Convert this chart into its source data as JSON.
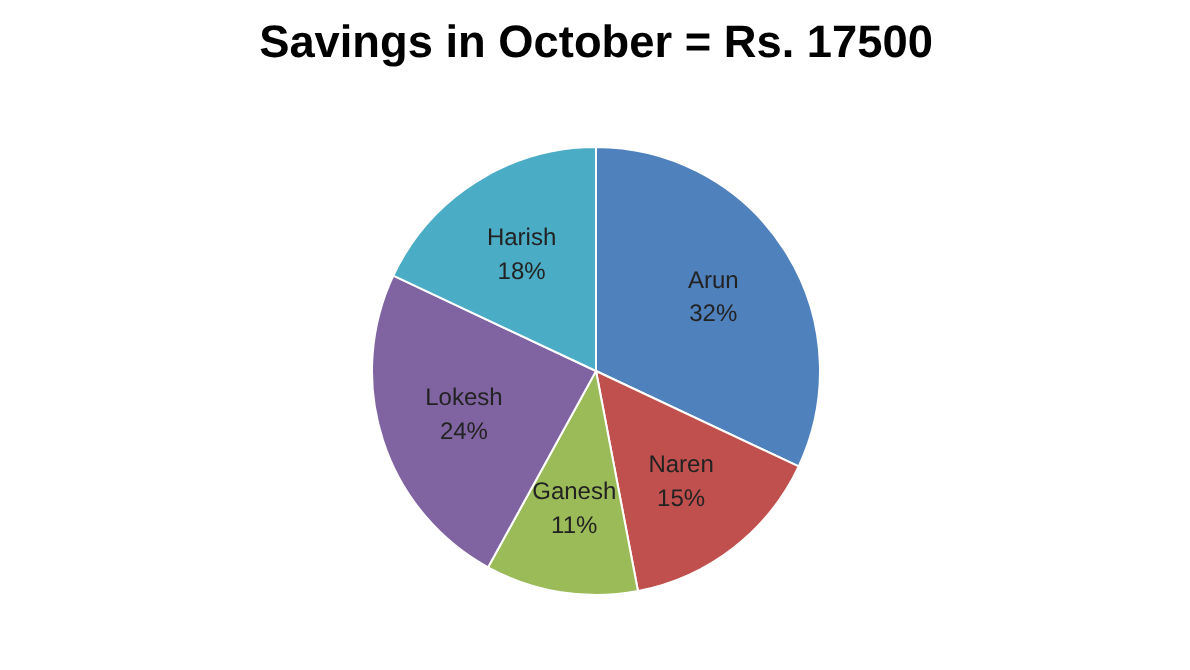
{
  "chart_data": {
    "type": "pie",
    "title": "Savings in October = Rs. 17500",
    "categories": [
      "Arun",
      "Naren",
      "Ganesh",
      "Lokesh",
      "Harish"
    ],
    "values": [
      32,
      15,
      11,
      24,
      18
    ],
    "colors": [
      "#4f81bd",
      "#c0504d",
      "#9bbb59",
      "#8064a2",
      "#4bacc6"
    ],
    "value_labels": [
      "32%",
      "15%",
      "11%",
      "24%",
      "18%"
    ]
  }
}
